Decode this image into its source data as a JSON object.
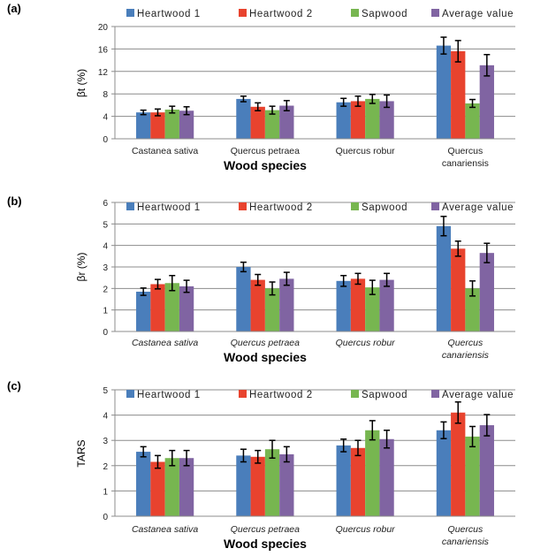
{
  "chart_data": [
    {
      "panel_label": "(a)",
      "type": "bar",
      "ylabel": "βt (%)",
      "xlabel": "Wood species",
      "italic_categories": false,
      "categories": [
        [
          "Castanea sativa"
        ],
        [
          "Quercus petraea"
        ],
        [
          "Quercus robur"
        ],
        [
          "Quercus",
          "canariensis"
        ]
      ],
      "ylim": [
        0,
        20
      ],
      "yticks": [
        0,
        4,
        8,
        12,
        16,
        20
      ],
      "grid": true,
      "legend": "top",
      "series": [
        {
          "name": "Heartwood 1",
          "color": "#4a7ebb",
          "values": [
            4.7,
            7.1,
            6.5,
            16.6
          ],
          "errors": [
            0.4,
            0.5,
            0.7,
            1.5
          ]
        },
        {
          "name": "Heartwood 2",
          "color": "#e8432e",
          "values": [
            4.7,
            5.7,
            6.7,
            15.6
          ],
          "errors": [
            0.6,
            0.7,
            0.9,
            1.9
          ]
        },
        {
          "name": "Sapwood",
          "color": "#77b650",
          "values": [
            5.2,
            5.1,
            7.1,
            6.3
          ],
          "errors": [
            0.6,
            0.7,
            0.8,
            0.7
          ]
        },
        {
          "name": "Average value",
          "color": "#8064a2",
          "values": [
            5.0,
            5.9,
            6.7,
            13.1
          ],
          "errors": [
            0.7,
            0.9,
            1.1,
            1.9
          ]
        }
      ]
    },
    {
      "panel_label": "(b)",
      "type": "bar",
      "ylabel": "βr (%)",
      "xlabel": "Wood species",
      "italic_categories": true,
      "categories": [
        [
          "Castanea sativa"
        ],
        [
          "Quercus petraea"
        ],
        [
          "Quercus robur"
        ],
        [
          "Quercus",
          "canariensis"
        ]
      ],
      "ylim": [
        0,
        6
      ],
      "yticks": [
        0,
        1,
        2,
        3,
        4,
        5,
        6
      ],
      "grid": true,
      "legend": "top",
      "series": [
        {
          "name": "Heartwood 1",
          "color": "#4a7ebb",
          "values": [
            1.85,
            3.0,
            2.35,
            4.9
          ],
          "errors": [
            0.17,
            0.22,
            0.25,
            0.45
          ]
        },
        {
          "name": "Heartwood 2",
          "color": "#e8432e",
          "values": [
            2.2,
            2.4,
            2.45,
            3.85
          ],
          "errors": [
            0.22,
            0.25,
            0.25,
            0.35
          ]
        },
        {
          "name": "Sapwood",
          "color": "#77b650",
          "values": [
            2.25,
            2.0,
            2.05,
            2.0
          ],
          "errors": [
            0.35,
            0.3,
            0.33,
            0.35
          ]
        },
        {
          "name": "Average value",
          "color": "#8064a2",
          "values": [
            2.1,
            2.45,
            2.4,
            3.65
          ],
          "errors": [
            0.28,
            0.3,
            0.3,
            0.45
          ]
        }
      ]
    },
    {
      "panel_label": "(c)",
      "type": "bar",
      "ylabel": "TARS",
      "xlabel": "Wood species",
      "italic_categories": true,
      "categories": [
        [
          "Castanea sativa"
        ],
        [
          "Quercus petraea"
        ],
        [
          "Quercus robur"
        ],
        [
          "Quercus",
          "canariensis"
        ]
      ],
      "ylim": [
        0,
        5
      ],
      "yticks": [
        0,
        1,
        2,
        3,
        4,
        5
      ],
      "grid": true,
      "legend": "top",
      "series": [
        {
          "name": "Heartwood 1",
          "color": "#4a7ebb",
          "values": [
            2.55,
            2.4,
            2.8,
            3.4
          ],
          "errors": [
            0.2,
            0.25,
            0.25,
            0.33
          ]
        },
        {
          "name": "Heartwood 2",
          "color": "#e8432e",
          "values": [
            2.15,
            2.35,
            2.7,
            4.1
          ],
          "errors": [
            0.25,
            0.25,
            0.3,
            0.42
          ]
        },
        {
          "name": "Sapwood",
          "color": "#77b650",
          "values": [
            2.3,
            2.65,
            3.4,
            3.15
          ],
          "errors": [
            0.3,
            0.35,
            0.38,
            0.4
          ]
        },
        {
          "name": "Average value",
          "color": "#8064a2",
          "values": [
            2.3,
            2.45,
            3.05,
            3.6
          ],
          "errors": [
            0.3,
            0.3,
            0.35,
            0.42
          ]
        }
      ]
    }
  ]
}
